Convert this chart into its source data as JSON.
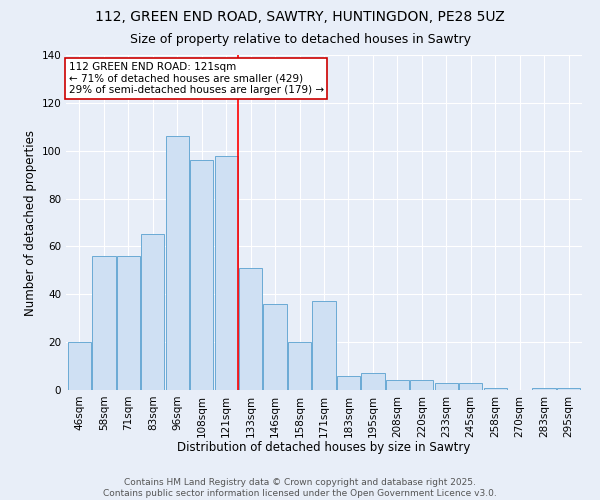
{
  "title_line1": "112, GREEN END ROAD, SAWTRY, HUNTINGDON, PE28 5UZ",
  "title_line2": "Size of property relative to detached houses in Sawtry",
  "categories": [
    "46sqm",
    "58sqm",
    "71sqm",
    "83sqm",
    "96sqm",
    "108sqm",
    "121sqm",
    "133sqm",
    "146sqm",
    "158sqm",
    "171sqm",
    "183sqm",
    "195sqm",
    "208sqm",
    "220sqm",
    "233sqm",
    "245sqm",
    "258sqm",
    "270sqm",
    "283sqm",
    "295sqm"
  ],
  "values": [
    20,
    56,
    56,
    65,
    106,
    96,
    98,
    51,
    36,
    20,
    37,
    6,
    7,
    4,
    4,
    3,
    3,
    1,
    0,
    1,
    1
  ],
  "bar_color": "#cfe0f3",
  "bar_edge_color": "#6aaad4",
  "red_line_index": 6,
  "xlabel": "Distribution of detached houses by size in Sawtry",
  "ylabel": "Number of detached properties",
  "ylim": [
    0,
    140
  ],
  "yticks": [
    0,
    20,
    40,
    60,
    80,
    100,
    120,
    140
  ],
  "annotation_title": "112 GREEN END ROAD: 121sqm",
  "annotation_line2": "← 71% of detached houses are smaller (429)",
  "annotation_line3": "29% of semi-detached houses are larger (179) →",
  "annotation_box_color": "#ffffff",
  "annotation_box_edge": "#cc0000",
  "footer_line1": "Contains HM Land Registry data © Crown copyright and database right 2025.",
  "footer_line2": "Contains public sector information licensed under the Open Government Licence v3.0.",
  "background_color": "#e8eef8",
  "grid_color": "#ffffff",
  "title_fontsize": 10,
  "subtitle_fontsize": 9,
  "axis_label_fontsize": 8.5,
  "tick_fontsize": 7.5,
  "annotation_fontsize": 7.5,
  "footer_fontsize": 6.5
}
